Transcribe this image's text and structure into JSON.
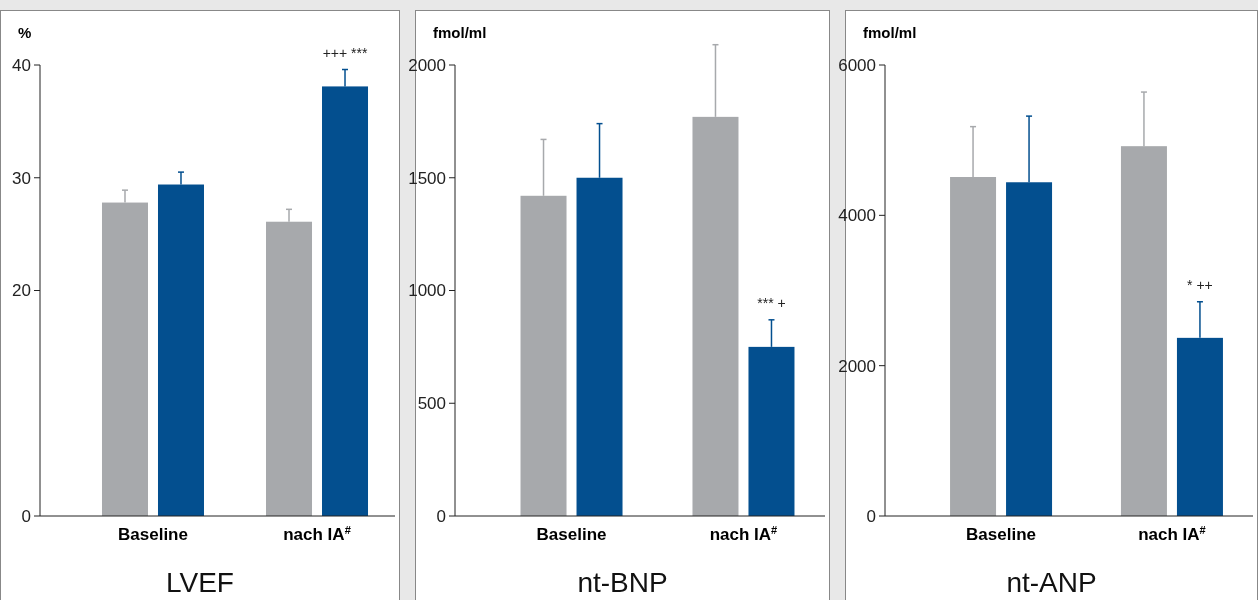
{
  "chart_data": [
    {
      "type": "bar",
      "title": "LVEF",
      "ylabel": "%",
      "categories": [
        "Baseline",
        "nach IA$^{#}$"
      ],
      "series": [
        {
          "color": "#a7a9ac",
          "values": [
            27.8,
            26.1
          ],
          "errors": [
            [
              27.8,
              28.9
            ],
            [
              26.1,
              27.2
            ]
          ]
        },
        {
          "color": "#034f8f",
          "values": [
            29.4,
            38.1
          ],
          "errors": [
            [
              29.4,
              30.5
            ],
            [
              38.1,
              39.6
            ]
          ]
        }
      ],
      "ylim": [
        0,
        40
      ],
      "yticks": [
        0,
        20,
        30,
        40
      ],
      "grid": false,
      "legend": false,
      "annotations": [
        "+++ ***"
      ]
    },
    {
      "type": "bar",
      "title": "nt-BNP",
      "ylabel": "fmol/ml",
      "categories": [
        "Baseline",
        "nach IA$^{#}$"
      ],
      "series": [
        {
          "color": "#a7a9ac",
          "values": [
            1420,
            1770
          ],
          "errors": [
            [
              1420,
              1670
            ],
            [
              1770,
              2090
            ]
          ]
        },
        {
          "color": "#034f8f",
          "values": [
            1500,
            750
          ],
          "errors": [
            [
              1500,
              1740
            ],
            [
              750,
              870
            ]
          ]
        }
      ],
      "ylim": [
        0,
        2000
      ],
      "yticks": [
        0,
        500,
        1000,
        1500,
        2000
      ],
      "grid": false,
      "legend": false,
      "annotations": [
        "*** +"
      ]
    },
    {
      "type": "bar",
      "title": "nt-ANP",
      "ylabel": "fmol/ml",
      "categories": [
        "Baseline",
        "nach IA$^{#}$"
      ],
      "series": [
        {
          "color": "#a7a9ac",
          "values": [
            4510,
            4920
          ],
          "errors": [
            [
              4510,
              5180
            ],
            [
              4920,
              5640
            ]
          ]
        },
        {
          "color": "#034f8f",
          "values": [
            4440,
            2370
          ],
          "errors": [
            [
              4440,
              5320
            ],
            [
              2370,
              2850
            ]
          ]
        }
      ],
      "ylim": [
        0,
        6000
      ],
      "yticks": [
        0,
        2000,
        4000,
        6000
      ],
      "grid": false,
      "legend": false,
      "annotations": [
        "* ++"
      ]
    }
  ]
}
